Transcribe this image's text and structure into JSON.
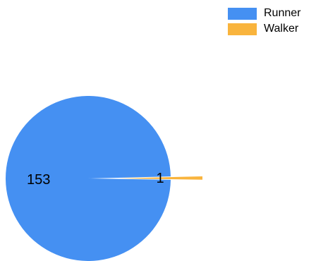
{
  "chart_data": {
    "type": "pie",
    "categories": [
      "Runner",
      "Walker"
    ],
    "values": [
      153,
      1
    ],
    "colors": [
      "#4590f2",
      "#f9b43d"
    ],
    "exploded": [
      false,
      true
    ],
    "data_labels": [
      "153",
      "1"
    ],
    "legend_position": "top-right"
  }
}
